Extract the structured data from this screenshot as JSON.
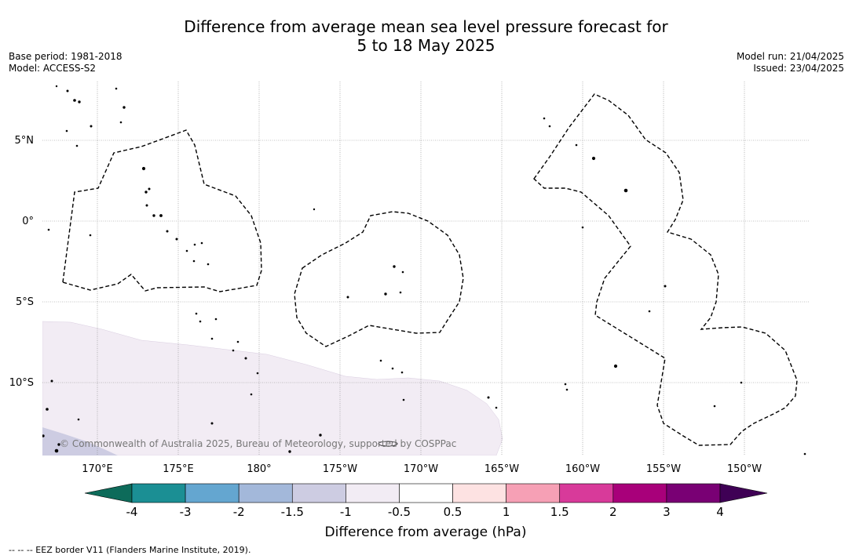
{
  "title_line1": "Difference from average mean sea level pressure forecast for",
  "title_line2": "5 to 18 May 2025",
  "base_period": "Base period: 1981-2018",
  "model": "Model: ACCESS-S2",
  "model_run": "Model run: 21/04/2025",
  "issued": "Issued: 23/04/2025",
  "copyright": "© Commonwealth of Australia 2025, Bureau of Meteorology, supported by COSPPac",
  "footer": "--  --  -- EEZ border V11 (Flanders Marine Institute, 2019).",
  "colorbar": {
    "title": "Difference from average (hPa)",
    "labels": [
      "-4",
      "-3",
      "-2",
      "-1.5",
      "-1",
      "-0.5",
      "0.5",
      "1",
      "1.5",
      "2",
      "3",
      "4"
    ],
    "under_color": "#0d6b5a",
    "over_color": "#3f0055",
    "colors": [
      "#1b8f94",
      "#64a6d0",
      "#a3b8da",
      "#cdcce2",
      "#f2ecf4",
      "#ffffff",
      "#fde2e2",
      "#f6a0b5",
      "#d83a9a",
      "#a8007a",
      "#790074"
    ]
  },
  "map": {
    "lon_labels": [
      "170°E",
      "175°E",
      "180°",
      "175°W",
      "170°W",
      "165°W",
      "160°W",
      "155°W",
      "150°W"
    ],
    "lat_labels": [
      "5°N",
      "0°",
      "5°S",
      "10°S"
    ],
    "grid": true,
    "anomaly_regions": [
      {
        "value_range": "-1 to -0.5",
        "color": "#f2ecf4",
        "area": "southwest"
      },
      {
        "value_range": "-1.5 to -1",
        "color": "#cdcce2",
        "area": "far southwest corner"
      }
    ]
  }
}
